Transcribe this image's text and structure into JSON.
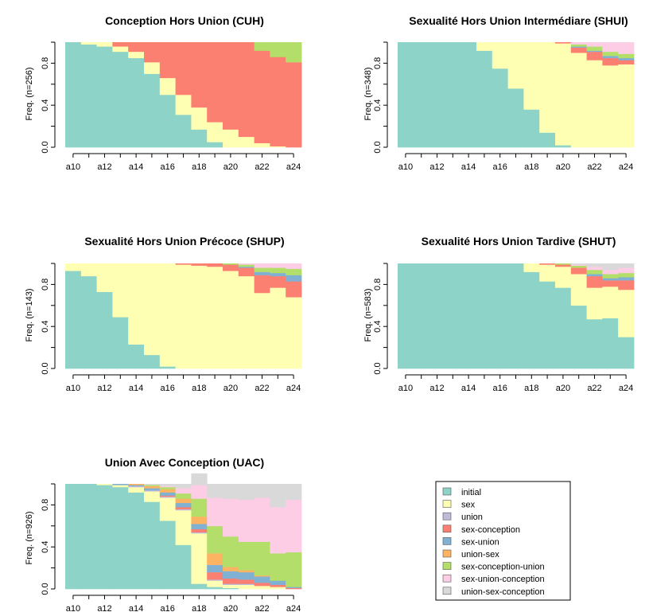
{
  "states": [
    {
      "key": "initial",
      "label": "initial",
      "color": "#8DD3C7"
    },
    {
      "key": "sex",
      "label": "sex",
      "color": "#FFFFB3"
    },
    {
      "key": "union",
      "label": "union",
      "color": "#BEBADA"
    },
    {
      "key": "sex-conception",
      "label": "sex-conception",
      "color": "#FB8072"
    },
    {
      "key": "sex-union",
      "label": "sex-union",
      "color": "#80B1D3"
    },
    {
      "key": "union-sex",
      "label": "union-sex",
      "color": "#FDB462"
    },
    {
      "key": "sex-conception-union",
      "label": "sex-conception-union",
      "color": "#B3DE69"
    },
    {
      "key": "sex-union-conception",
      "label": "sex-union-conception",
      "color": "#FCCDE5"
    },
    {
      "key": "union-sex-conception",
      "label": "union-sex-conception",
      "color": "#D9D9D9"
    }
  ],
  "chart_data": [
    {
      "type": "area",
      "title": "Conception Hors Union (CUH)",
      "ylabel": "Freq. (n=256)",
      "categories": [
        "a10",
        "a11",
        "a12",
        "a13",
        "a14",
        "a15",
        "a16",
        "a17",
        "a18",
        "a19",
        "a20",
        "a21",
        "a22",
        "a23",
        "a24"
      ],
      "x_tick_labels": [
        "a10",
        "a12",
        "a14",
        "a16",
        "a18",
        "a20",
        "a22",
        "a24"
      ],
      "y_ticks": [
        "0.0",
        "0.4",
        "0.8"
      ],
      "ylim": [
        0,
        1
      ],
      "series": [
        {
          "name": "initial",
          "values": [
            1.0,
            0.98,
            0.96,
            0.91,
            0.85,
            0.7,
            0.5,
            0.31,
            0.17,
            0.05,
            0,
            0,
            0,
            0,
            0
          ]
        },
        {
          "name": "sex",
          "values": [
            0,
            0.02,
            0.04,
            0.05,
            0.06,
            0.11,
            0.16,
            0.19,
            0.21,
            0.19,
            0.17,
            0.1,
            0.04,
            0.01,
            0
          ]
        },
        {
          "name": "sex-conception",
          "values": [
            0,
            0,
            0,
            0.04,
            0.09,
            0.19,
            0.34,
            0.5,
            0.62,
            0.76,
            0.83,
            0.9,
            0.88,
            0.85,
            0.81
          ]
        },
        {
          "name": "sex-conception-union",
          "values": [
            0,
            0,
            0,
            0,
            0,
            0,
            0,
            0,
            0,
            0,
            0,
            0,
            0.08,
            0.14,
            0.19
          ]
        }
      ]
    },
    {
      "type": "area",
      "title": "Sexualité Hors Union Intermédiare (SHUI)",
      "ylabel": "Freq. (n=348)",
      "categories": [
        "a10",
        "a11",
        "a12",
        "a13",
        "a14",
        "a15",
        "a16",
        "a17",
        "a18",
        "a19",
        "a20",
        "a21",
        "a22",
        "a23",
        "a24"
      ],
      "x_tick_labels": [
        "a10",
        "a12",
        "a14",
        "a16",
        "a18",
        "a20",
        "a22",
        "a24"
      ],
      "y_ticks": [
        "0.0",
        "0.4",
        "0.8"
      ],
      "ylim": [
        0,
        1
      ],
      "series": [
        {
          "name": "initial",
          "values": [
            1.0,
            1.0,
            1.0,
            1.0,
            1.0,
            0.92,
            0.75,
            0.56,
            0.36,
            0.14,
            0.02,
            0,
            0,
            0,
            0
          ]
        },
        {
          "name": "sex",
          "values": [
            0,
            0,
            0,
            0,
            0,
            0.08,
            0.25,
            0.44,
            0.64,
            0.86,
            0.97,
            0.9,
            0.83,
            0.78,
            0.79
          ]
        },
        {
          "name": "sex-conception",
          "values": [
            0,
            0,
            0,
            0,
            0,
            0,
            0,
            0,
            0,
            0,
            0.01,
            0.05,
            0.08,
            0.07,
            0.04
          ]
        },
        {
          "name": "sex-union",
          "values": [
            0,
            0,
            0,
            0,
            0,
            0,
            0,
            0,
            0,
            0,
            0,
            0.01,
            0.01,
            0.02,
            0.02
          ]
        },
        {
          "name": "sex-conception-union",
          "values": [
            0,
            0,
            0,
            0,
            0,
            0,
            0,
            0,
            0,
            0,
            0,
            0.02,
            0.04,
            0.04,
            0.04
          ]
        },
        {
          "name": "sex-union-conception",
          "values": [
            0,
            0,
            0,
            0,
            0,
            0,
            0,
            0,
            0,
            0,
            0,
            0.02,
            0.04,
            0.09,
            0.11
          ]
        }
      ]
    },
    {
      "type": "area",
      "title": "Sexualité Hors Union Précoce (SHUP)",
      "ylabel": "Freq. (n=143)",
      "categories": [
        "a10",
        "a11",
        "a12",
        "a13",
        "a14",
        "a15",
        "a16",
        "a17",
        "a18",
        "a19",
        "a20",
        "a21",
        "a22",
        "a23",
        "a24"
      ],
      "x_tick_labels": [
        "a10",
        "a12",
        "a14",
        "a16",
        "a18",
        "a20",
        "a22",
        "a24"
      ],
      "y_ticks": [
        "0.0",
        "0.4",
        "0.8"
      ],
      "ylim": [
        0,
        1
      ],
      "series": [
        {
          "name": "initial",
          "values": [
            0.93,
            0.88,
            0.73,
            0.49,
            0.23,
            0.13,
            0.02,
            0,
            0,
            0,
            0,
            0,
            0,
            0,
            0
          ]
        },
        {
          "name": "sex",
          "values": [
            0.07,
            0.12,
            0.27,
            0.51,
            0.77,
            0.87,
            0.98,
            0.99,
            0.98,
            0.97,
            0.93,
            0.88,
            0.72,
            0.77,
            0.68
          ]
        },
        {
          "name": "sex-conception",
          "values": [
            0,
            0,
            0,
            0,
            0,
            0,
            0,
            0.01,
            0.02,
            0.03,
            0.06,
            0.08,
            0.17,
            0.11,
            0.15
          ]
        },
        {
          "name": "sex-union",
          "values": [
            0,
            0,
            0,
            0,
            0,
            0,
            0,
            0,
            0,
            0,
            0,
            0.01,
            0.03,
            0.03,
            0.06
          ]
        },
        {
          "name": "sex-conception-union",
          "values": [
            0,
            0,
            0,
            0,
            0,
            0,
            0,
            0,
            0,
            0,
            0.01,
            0.02,
            0.04,
            0.05,
            0.06
          ]
        },
        {
          "name": "sex-union-conception",
          "values": [
            0,
            0,
            0,
            0,
            0,
            0,
            0,
            0,
            0,
            0,
            0,
            0.01,
            0.04,
            0.04,
            0.05
          ]
        }
      ]
    },
    {
      "type": "area",
      "title": "Sexualité Hors Union Tardive (SHUT)",
      "ylabel": "Freq. (n=583)",
      "categories": [
        "a10",
        "a11",
        "a12",
        "a13",
        "a14",
        "a15",
        "a16",
        "a17",
        "a18",
        "a19",
        "a20",
        "a21",
        "a22",
        "a23",
        "a24"
      ],
      "x_tick_labels": [
        "a10",
        "a12",
        "a14",
        "a16",
        "a18",
        "a20",
        "a22",
        "a24"
      ],
      "y_ticks": [
        "0.0",
        "0.4",
        "0.8"
      ],
      "ylim": [
        0,
        1
      ],
      "series": [
        {
          "name": "initial",
          "values": [
            1.0,
            1.0,
            1.0,
            1.0,
            1.0,
            1.0,
            1.0,
            1.0,
            0.92,
            0.83,
            0.77,
            0.6,
            0.47,
            0.48,
            0.3
          ]
        },
        {
          "name": "sex",
          "values": [
            0,
            0,
            0,
            0,
            0,
            0,
            0,
            0,
            0.08,
            0.16,
            0.2,
            0.3,
            0.3,
            0.3,
            0.45
          ]
        },
        {
          "name": "sex-conception",
          "values": [
            0,
            0,
            0,
            0,
            0,
            0,
            0,
            0,
            0,
            0.01,
            0.02,
            0.06,
            0.11,
            0.06,
            0.09
          ]
        },
        {
          "name": "sex-union",
          "values": [
            0,
            0,
            0,
            0,
            0,
            0,
            0,
            0,
            0,
            0,
            0,
            0,
            0.02,
            0.02,
            0.03
          ]
        },
        {
          "name": "sex-conception-union",
          "values": [
            0,
            0,
            0,
            0,
            0,
            0,
            0,
            0,
            0,
            0,
            0.01,
            0.02,
            0.04,
            0.04,
            0.04
          ]
        },
        {
          "name": "sex-union-conception",
          "values": [
            0,
            0,
            0,
            0,
            0,
            0,
            0,
            0,
            0,
            0,
            0,
            0.01,
            0.03,
            0.04,
            0.05
          ]
        },
        {
          "name": "union-sex-conception",
          "values": [
            0,
            0,
            0,
            0,
            0,
            0,
            0,
            0,
            0,
            0,
            0,
            0.01,
            0.03,
            0.06,
            0.04
          ]
        }
      ]
    },
    {
      "type": "area",
      "title": "Union Avec Conception (UAC)",
      "ylabel": "Freq. (n=926)",
      "categories": [
        "a10",
        "a11",
        "a12",
        "a13",
        "a14",
        "a15",
        "a16",
        "a17",
        "a18",
        "a19",
        "a20",
        "a21",
        "a22",
        "a23",
        "a24"
      ],
      "x_tick_labels": [
        "a10",
        "a12",
        "a14",
        "a16",
        "a18",
        "a20",
        "a22",
        "a24"
      ],
      "y_ticks": [
        "0.0",
        "0.4",
        "0.8"
      ],
      "ylim": [
        0,
        1
      ],
      "series": [
        {
          "name": "initial",
          "values": [
            1.0,
            1.0,
            0.99,
            0.97,
            0.92,
            0.83,
            0.65,
            0.42,
            0.05,
            0.02,
            0.01,
            0,
            0,
            0,
            0
          ]
        },
        {
          "name": "sex",
          "values": [
            0,
            0,
            0.01,
            0.02,
            0.05,
            0.1,
            0.22,
            0.33,
            0.48,
            0.06,
            0.03,
            0.04,
            0.03,
            0.02,
            0
          ]
        },
        {
          "name": "union",
          "values": [
            0,
            0,
            0,
            0,
            0.01,
            0.01,
            0.01,
            0.01,
            0.01,
            0.01,
            0.01,
            0.01,
            0,
            0,
            0
          ]
        },
        {
          "name": "sex-conception",
          "values": [
            0,
            0,
            0,
            0,
            0,
            0,
            0.01,
            0.02,
            0.03,
            0.07,
            0.05,
            0.04,
            0.03,
            0.02,
            0.01
          ]
        },
        {
          "name": "sex-union",
          "values": [
            0,
            0,
            0,
            0.01,
            0.01,
            0.02,
            0.03,
            0.04,
            0.05,
            0.07,
            0.07,
            0.07,
            0.06,
            0.04,
            0.01
          ]
        },
        {
          "name": "union-sex",
          "values": [
            0,
            0,
            0,
            0,
            0.01,
            0.02,
            0.03,
            0.04,
            0.07,
            0.11,
            0.04,
            0.02,
            0.01,
            0,
            0
          ]
        },
        {
          "name": "sex-conception-union",
          "values": [
            0,
            0,
            0,
            0,
            0,
            0.01,
            0.02,
            0.05,
            0.17,
            0.26,
            0.29,
            0.27,
            0.32,
            0.26,
            0.33
          ]
        },
        {
          "name": "sex-union-conception",
          "values": [
            0,
            0,
            0,
            0,
            0,
            0,
            0.01,
            0.05,
            0.13,
            0.27,
            0.36,
            0.4,
            0.42,
            0.44,
            0.5
          ]
        },
        {
          "name": "union-sex-conception",
          "values": [
            0,
            0,
            0,
            0,
            0,
            0.01,
            0.02,
            0.04,
            0.11,
            0.13,
            0.14,
            0.15,
            0.13,
            0.22,
            0.15
          ]
        }
      ]
    }
  ]
}
